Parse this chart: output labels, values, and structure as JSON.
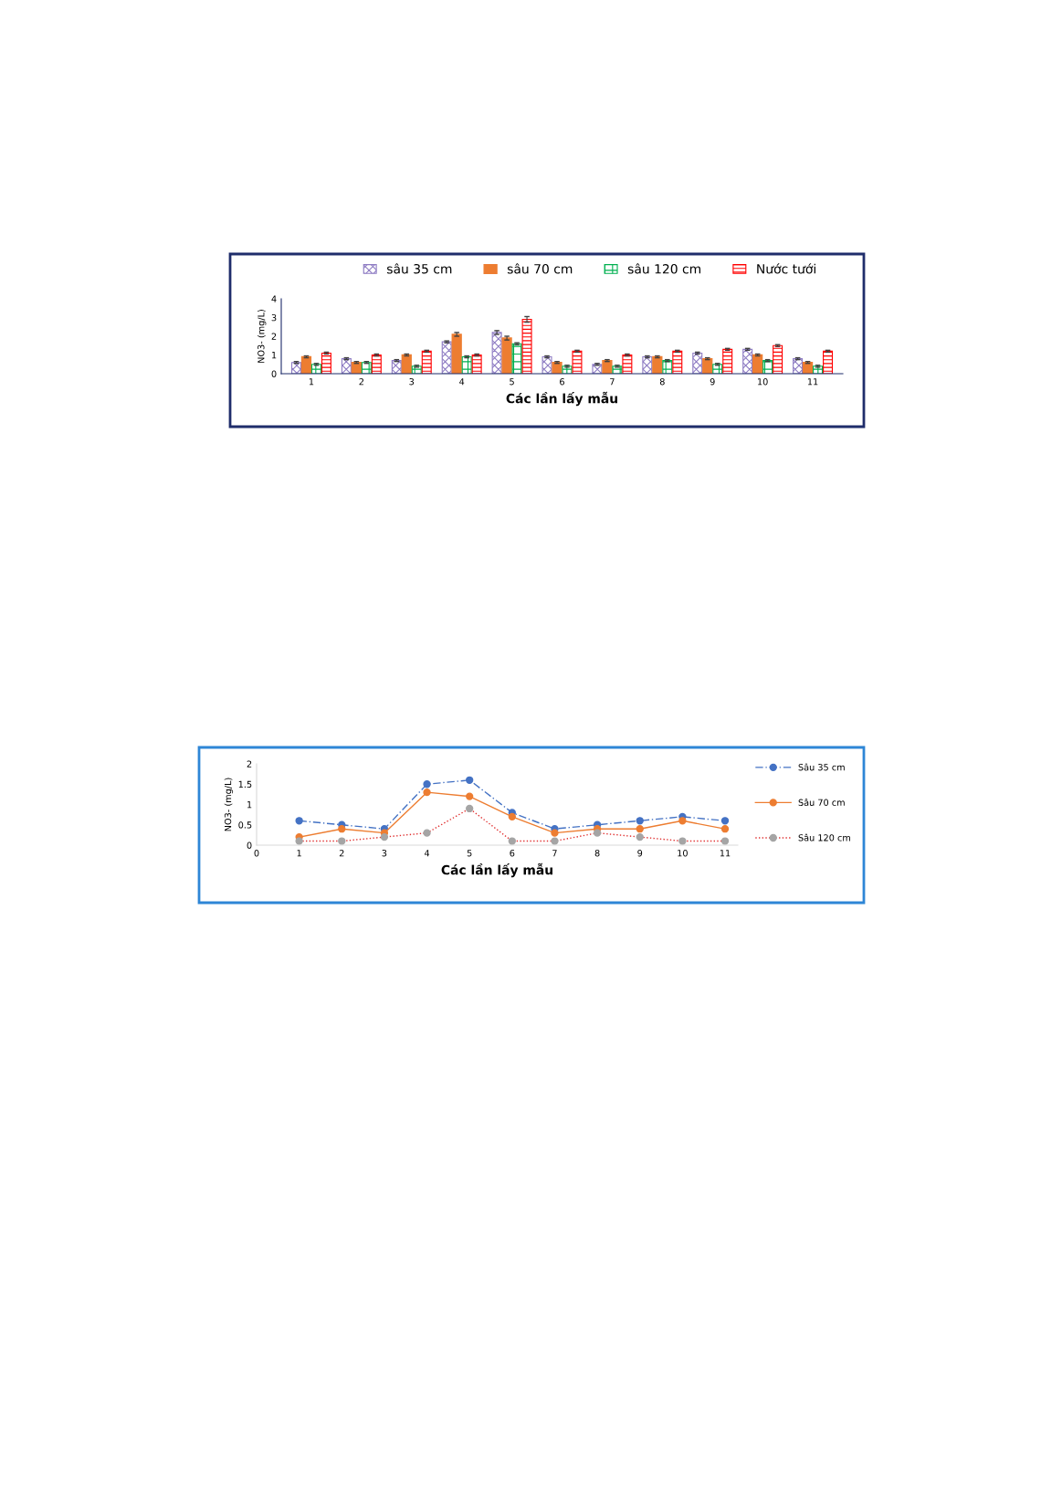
{
  "chart_data": [
    {
      "type": "bar",
      "xlabel": "Các lần lấy mẫu",
      "ylabel": "NO3- (mg/L)",
      "categories": [
        "1",
        "2",
        "3",
        "4",
        "5",
        "6",
        "7",
        "8",
        "9",
        "10",
        "11"
      ],
      "ylim": [
        0,
        4
      ],
      "yticks": [
        0,
        1,
        2,
        3,
        4
      ],
      "grid": false,
      "legend": "top",
      "series": [
        {
          "name": "sâu 35 cm",
          "color": "#8e7cc3",
          "values": [
            0.6,
            0.8,
            0.7,
            1.7,
            2.2,
            0.9,
            0.5,
            0.9,
            1.1,
            1.3,
            0.8
          ],
          "errors": [
            0.05,
            0.05,
            0.05,
            0.05,
            0.1,
            0.05,
            0.05,
            0.05,
            0.05,
            0.05,
            0.05
          ]
        },
        {
          "name": "sâu 70 cm",
          "color": "#ed7d31",
          "values": [
            0.9,
            0.6,
            1.0,
            2.1,
            1.9,
            0.6,
            0.7,
            0.9,
            0.8,
            1.0,
            0.6
          ],
          "errors": [
            0.05,
            0.05,
            0.05,
            0.1,
            0.1,
            0.05,
            0.05,
            0.05,
            0.05,
            0.05,
            0.05
          ]
        },
        {
          "name": "sâu 120 cm",
          "color": "#00b050",
          "values": [
            0.5,
            0.6,
            0.4,
            0.9,
            1.6,
            0.4,
            0.4,
            0.7,
            0.5,
            0.7,
            0.4
          ],
          "errors": [
            0.05,
            0.05,
            0.05,
            0.05,
            0.05,
            0.05,
            0.05,
            0.05,
            0.05,
            0.05,
            0.05
          ]
        },
        {
          "name": "Nước tưới",
          "color": "#ff0000",
          "values": [
            1.1,
            1.0,
            1.2,
            1.0,
            2.9,
            1.2,
            1.0,
            1.2,
            1.3,
            1.5,
            1.2
          ],
          "errors": [
            0.05,
            0.05,
            0.05,
            0.05,
            0.15,
            0.05,
            0.05,
            0.05,
            0.05,
            0.05,
            0.05
          ]
        }
      ]
    },
    {
      "type": "line",
      "xlabel": "Các lần lấy mẫu",
      "ylabel": "NO3- (mg/L)",
      "x": [
        1,
        2,
        3,
        4,
        5,
        6,
        7,
        8,
        9,
        10,
        11
      ],
      "xlim": [
        0,
        11.3
      ],
      "xticks": [
        0,
        1,
        2,
        3,
        4,
        5,
        6,
        7,
        8,
        9,
        10,
        11
      ],
      "ylim": [
        0,
        2
      ],
      "yticks": [
        0,
        0.5,
        1,
        1.5,
        2
      ],
      "grid": false,
      "legend": "right",
      "marker": "circle",
      "series": [
        {
          "name": "Sâu 35 cm",
          "color": "#4472c4",
          "line_style": "dashed",
          "values": [
            0.6,
            0.5,
            0.4,
            1.5,
            1.6,
            0.8,
            0.4,
            0.5,
            0.6,
            0.7,
            0.6
          ]
        },
        {
          "name": "Sâu 70 cm",
          "color": "#ed7d31",
          "line_style": "solid",
          "values": [
            0.2,
            0.4,
            0.3,
            1.3,
            1.2,
            0.7,
            0.3,
            0.4,
            0.4,
            0.6,
            0.4
          ]
        },
        {
          "name": "Sâu 120 cm",
          "color": "#a5a5a5",
          "line_style": "dotted",
          "values": [
            0.1,
            0.1,
            0.2,
            0.3,
            0.9,
            0.1,
            0.1,
            0.3,
            0.2,
            0.1,
            0.1
          ]
        }
      ]
    }
  ]
}
